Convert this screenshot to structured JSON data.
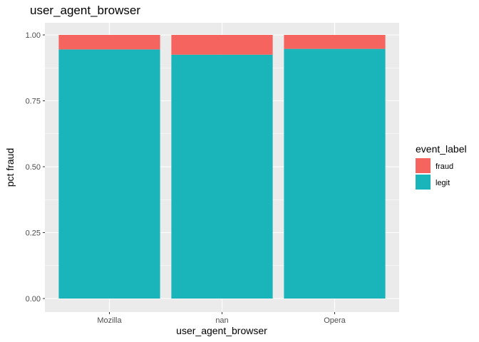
{
  "chart_data": {
    "type": "bar",
    "stacked": true,
    "title": "user_agent_browser",
    "xlabel": "user_agent_browser",
    "ylabel": "pct fraud",
    "categories": [
      "Mozilla",
      "nan",
      "Opera"
    ],
    "series": [
      {
        "name": "legit",
        "color": "#19b5bb",
        "values": [
          0.945,
          0.925,
          0.947
        ]
      },
      {
        "name": "fraud",
        "color": "#f6645f",
        "values": [
          0.055,
          0.075,
          0.053
        ]
      }
    ],
    "ylim": [
      0,
      1
    ],
    "yticks": [
      0,
      0.25,
      0.5,
      0.75,
      1
    ],
    "ytick_labels": [
      "0.00",
      "0.25",
      "0.50",
      "0.75",
      "1.00"
    ],
    "grid": true,
    "legend": {
      "title": "event_label",
      "position": "right",
      "entries": [
        {
          "label": "fraud",
          "color": "#f6645f"
        },
        {
          "label": "legit",
          "color": "#19b5bb"
        }
      ]
    }
  }
}
